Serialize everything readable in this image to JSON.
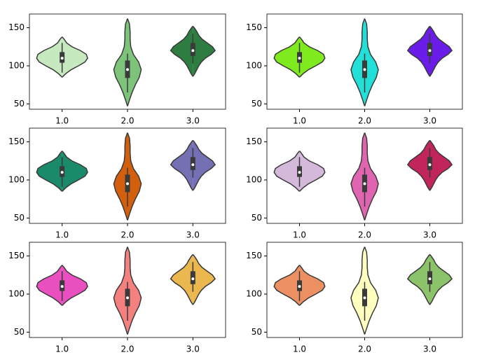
{
  "chart_data": [
    {
      "type": "violin",
      "categories": [
        "1.0",
        "2.0",
        "3.0"
      ],
      "colors": [
        "#c7e9c0",
        "#7dc47a",
        "#2e7d40"
      ],
      "ylim": [
        43,
        168
      ],
      "yticks": [
        50,
        100,
        150
      ],
      "violins": [
        {
          "min": 91,
          "q1": 104,
          "median": 110,
          "q3": 118,
          "max": 130,
          "profile_y": [
            85,
            90,
            95,
            100,
            105,
            110,
            115,
            120,
            125,
            130,
            135,
            138
          ],
          "profile_w": [
            0,
            0.06,
            0.14,
            0.25,
            0.35,
            0.39,
            0.37,
            0.28,
            0.15,
            0.07,
            0.03,
            0
          ]
        },
        {
          "min": 65,
          "q1": 84,
          "median": 95,
          "q3": 107,
          "max": 116,
          "profile_y": [
            47,
            55,
            65,
            75,
            85,
            95,
            105,
            115,
            125,
            135,
            145,
            155,
            162
          ],
          "profile_w": [
            0,
            0.03,
            0.07,
            0.12,
            0.18,
            0.21,
            0.17,
            0.09,
            0.05,
            0.04,
            0.04,
            0.03,
            0
          ]
        },
        {
          "min": 103,
          "q1": 113,
          "median": 120,
          "q3": 130,
          "max": 142,
          "profile_y": [
            86,
            90,
            95,
            100,
            105,
            110,
            115,
            120,
            125,
            130,
            135,
            140,
            145,
            150,
            152
          ],
          "profile_w": [
            0,
            0.03,
            0.06,
            0.09,
            0.13,
            0.19,
            0.28,
            0.34,
            0.3,
            0.22,
            0.14,
            0.09,
            0.06,
            0.02,
            0
          ]
        }
      ]
    },
    {
      "type": "violin",
      "categories": [
        "1.0",
        "2.0",
        "3.0"
      ],
      "colors": [
        "#7fea1e",
        "#22dfd8",
        "#6a1de8"
      ],
      "ylim": [
        43,
        168
      ],
      "yticks": [
        50,
        100,
        150
      ],
      "violins": [
        {
          "min": 91,
          "q1": 104,
          "median": 110,
          "q3": 118,
          "max": 130,
          "profile_y": [
            85,
            90,
            95,
            100,
            105,
            110,
            115,
            120,
            125,
            130,
            135,
            138
          ],
          "profile_w": [
            0,
            0.06,
            0.14,
            0.25,
            0.35,
            0.39,
            0.37,
            0.28,
            0.15,
            0.07,
            0.03,
            0
          ]
        },
        {
          "min": 65,
          "q1": 84,
          "median": 95,
          "q3": 107,
          "max": 116,
          "profile_y": [
            47,
            55,
            65,
            75,
            85,
            95,
            105,
            115,
            125,
            135,
            145,
            155,
            162
          ],
          "profile_w": [
            0,
            0.03,
            0.07,
            0.12,
            0.18,
            0.21,
            0.17,
            0.09,
            0.05,
            0.04,
            0.04,
            0.03,
            0
          ]
        },
        {
          "min": 103,
          "q1": 113,
          "median": 120,
          "q3": 130,
          "max": 142,
          "profile_y": [
            86,
            90,
            95,
            100,
            105,
            110,
            115,
            120,
            125,
            130,
            135,
            140,
            145,
            150,
            152
          ],
          "profile_w": [
            0,
            0.03,
            0.06,
            0.09,
            0.13,
            0.19,
            0.28,
            0.34,
            0.3,
            0.22,
            0.14,
            0.09,
            0.06,
            0.02,
            0
          ]
        }
      ]
    },
    {
      "type": "violin",
      "categories": [
        "1.0",
        "2.0",
        "3.0"
      ],
      "colors": [
        "#1b8a6b",
        "#d25f0d",
        "#7570b3"
      ],
      "ylim": [
        43,
        168
      ],
      "yticks": [
        50,
        100,
        150
      ],
      "violins": [
        {
          "min": 91,
          "q1": 104,
          "median": 110,
          "q3": 118,
          "max": 130,
          "profile_y": [
            85,
            90,
            95,
            100,
            105,
            110,
            115,
            120,
            125,
            130,
            135,
            138
          ],
          "profile_w": [
            0,
            0.06,
            0.14,
            0.25,
            0.35,
            0.39,
            0.37,
            0.28,
            0.15,
            0.07,
            0.03,
            0
          ]
        },
        {
          "min": 65,
          "q1": 84,
          "median": 95,
          "q3": 107,
          "max": 116,
          "profile_y": [
            47,
            55,
            65,
            75,
            85,
            95,
            105,
            115,
            125,
            135,
            145,
            155,
            162
          ],
          "profile_w": [
            0,
            0.03,
            0.07,
            0.12,
            0.18,
            0.21,
            0.17,
            0.09,
            0.05,
            0.04,
            0.04,
            0.03,
            0
          ]
        },
        {
          "min": 103,
          "q1": 113,
          "median": 120,
          "q3": 130,
          "max": 142,
          "profile_y": [
            86,
            90,
            95,
            100,
            105,
            110,
            115,
            120,
            125,
            130,
            135,
            140,
            145,
            150,
            152
          ],
          "profile_w": [
            0,
            0.03,
            0.06,
            0.09,
            0.13,
            0.19,
            0.28,
            0.34,
            0.3,
            0.22,
            0.14,
            0.09,
            0.06,
            0.02,
            0
          ]
        }
      ]
    },
    {
      "type": "violin",
      "categories": [
        "1.0",
        "2.0",
        "3.0"
      ],
      "colors": [
        "#d4b9da",
        "#df65b0",
        "#c2255b"
      ],
      "ylim": [
        43,
        168
      ],
      "yticks": [
        50,
        100,
        150
      ],
      "violins": [
        {
          "min": 91,
          "q1": 104,
          "median": 110,
          "q3": 118,
          "max": 130,
          "profile_y": [
            85,
            90,
            95,
            100,
            105,
            110,
            115,
            120,
            125,
            130,
            135,
            138
          ],
          "profile_w": [
            0,
            0.06,
            0.14,
            0.25,
            0.35,
            0.39,
            0.37,
            0.28,
            0.15,
            0.07,
            0.03,
            0
          ]
        },
        {
          "min": 65,
          "q1": 84,
          "median": 95,
          "q3": 107,
          "max": 116,
          "profile_y": [
            47,
            55,
            65,
            75,
            85,
            95,
            105,
            115,
            125,
            135,
            145,
            155,
            162
          ],
          "profile_w": [
            0,
            0.03,
            0.07,
            0.12,
            0.18,
            0.21,
            0.17,
            0.09,
            0.05,
            0.04,
            0.04,
            0.03,
            0
          ]
        },
        {
          "min": 103,
          "q1": 113,
          "median": 120,
          "q3": 130,
          "max": 142,
          "profile_y": [
            86,
            90,
            95,
            100,
            105,
            110,
            115,
            120,
            125,
            130,
            135,
            140,
            145,
            150,
            152
          ],
          "profile_w": [
            0,
            0.03,
            0.06,
            0.09,
            0.13,
            0.19,
            0.28,
            0.34,
            0.3,
            0.22,
            0.14,
            0.09,
            0.06,
            0.02,
            0
          ]
        }
      ]
    },
    {
      "type": "violin",
      "categories": [
        "1.0",
        "2.0",
        "3.0"
      ],
      "colors": [
        "#ea4fc0",
        "#f58080",
        "#ebb74f"
      ],
      "ylim": [
        43,
        168
      ],
      "yticks": [
        50,
        100,
        150
      ],
      "violins": [
        {
          "min": 91,
          "q1": 104,
          "median": 110,
          "q3": 118,
          "max": 130,
          "profile_y": [
            85,
            90,
            95,
            100,
            105,
            110,
            115,
            120,
            125,
            130,
            135,
            138
          ],
          "profile_w": [
            0,
            0.06,
            0.14,
            0.25,
            0.35,
            0.39,
            0.37,
            0.28,
            0.15,
            0.07,
            0.03,
            0
          ]
        },
        {
          "min": 65,
          "q1": 84,
          "median": 95,
          "q3": 107,
          "max": 116,
          "profile_y": [
            47,
            55,
            65,
            75,
            85,
            95,
            105,
            115,
            125,
            135,
            145,
            155,
            162
          ],
          "profile_w": [
            0,
            0.03,
            0.07,
            0.12,
            0.18,
            0.21,
            0.17,
            0.09,
            0.05,
            0.04,
            0.04,
            0.03,
            0
          ]
        },
        {
          "min": 103,
          "q1": 113,
          "median": 120,
          "q3": 130,
          "max": 142,
          "profile_y": [
            86,
            90,
            95,
            100,
            105,
            110,
            115,
            120,
            125,
            130,
            135,
            140,
            145,
            150,
            152
          ],
          "profile_w": [
            0,
            0.03,
            0.06,
            0.09,
            0.13,
            0.19,
            0.28,
            0.34,
            0.3,
            0.22,
            0.14,
            0.09,
            0.06,
            0.02,
            0
          ]
        }
      ]
    },
    {
      "type": "violin",
      "categories": [
        "1.0",
        "2.0",
        "3.0"
      ],
      "colors": [
        "#ec8f63",
        "#ffffc0",
        "#8bc26a"
      ],
      "ylim": [
        43,
        168
      ],
      "yticks": [
        50,
        100,
        150
      ],
      "violins": [
        {
          "min": 91,
          "q1": 104,
          "median": 110,
          "q3": 118,
          "max": 130,
          "profile_y": [
            85,
            90,
            95,
            100,
            105,
            110,
            115,
            120,
            125,
            130,
            135,
            138
          ],
          "profile_w": [
            0,
            0.06,
            0.14,
            0.25,
            0.35,
            0.39,
            0.37,
            0.28,
            0.15,
            0.07,
            0.03,
            0
          ]
        },
        {
          "min": 65,
          "q1": 84,
          "median": 95,
          "q3": 107,
          "max": 116,
          "profile_y": [
            47,
            55,
            65,
            75,
            85,
            95,
            105,
            115,
            125,
            135,
            145,
            155,
            162
          ],
          "profile_w": [
            0,
            0.03,
            0.07,
            0.12,
            0.18,
            0.21,
            0.17,
            0.09,
            0.05,
            0.04,
            0.04,
            0.03,
            0
          ]
        },
        {
          "min": 103,
          "q1": 113,
          "median": 120,
          "q3": 130,
          "max": 142,
          "profile_y": [
            86,
            90,
            95,
            100,
            105,
            110,
            115,
            120,
            125,
            130,
            135,
            140,
            145,
            150,
            152
          ],
          "profile_w": [
            0,
            0.03,
            0.06,
            0.09,
            0.13,
            0.19,
            0.28,
            0.34,
            0.3,
            0.22,
            0.14,
            0.09,
            0.06,
            0.02,
            0
          ]
        }
      ]
    }
  ]
}
